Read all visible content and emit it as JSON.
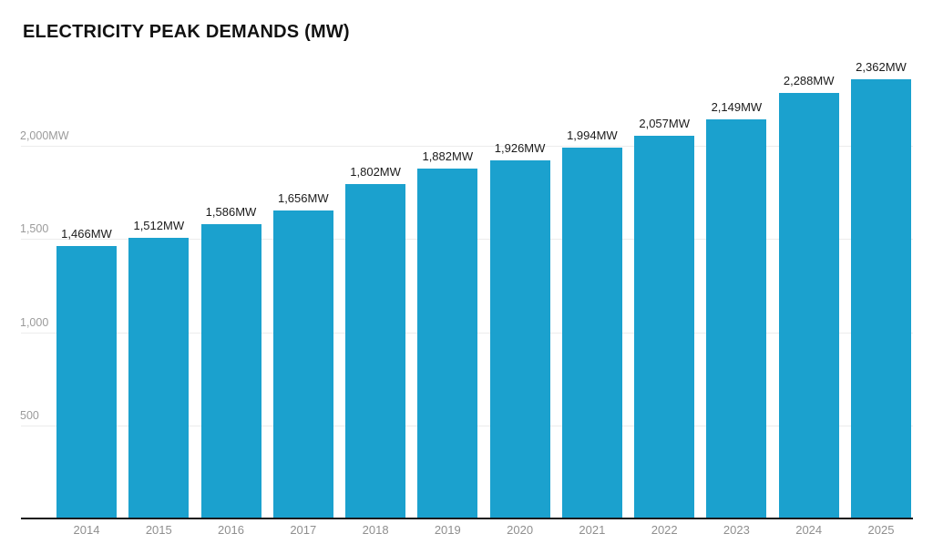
{
  "header": {
    "title": "ELECTRICITY PEAK DEMANDS (MW)"
  },
  "chart_data": {
    "type": "bar",
    "title": "ELECTRICITY PEAK DEMANDS (MW)",
    "xlabel": "",
    "ylabel": "",
    "categories": [
      "2014",
      "2015",
      "2016",
      "2017",
      "2018",
      "2019",
      "2020",
      "2021",
      "2022",
      "2023",
      "2024",
      "2025"
    ],
    "values": [
      1466,
      1512,
      1586,
      1656,
      1802,
      1882,
      1926,
      1994,
      2057,
      2149,
      2288,
      2362
    ],
    "value_labels": [
      "1,466MW",
      "1,512MW",
      "1,586MW",
      "1,656MW",
      "1,802MW",
      "1,882MW",
      "1,926MW",
      "1,994MW",
      "2,057MW",
      "2,149MW",
      "2,288MW",
      "2,362MW"
    ],
    "y_ticks": [
      {
        "value": 500,
        "label": "500"
      },
      {
        "value": 1000,
        "label": "1,000"
      },
      {
        "value": 1500,
        "label": "1,500"
      },
      {
        "value": 2000,
        "label": "2,000MW"
      }
    ],
    "ylim": [
      0,
      2500
    ],
    "grid": "horizontal",
    "legend": "none",
    "colors": {
      "bar": "#1BA1CE",
      "value_label": "#1b1b1b",
      "tick_label": "#8f8f8f",
      "y_tick_label": "#9b9b9b",
      "gridline": "#ececec",
      "axis_line": "#191919",
      "background": "#ffffff",
      "title": "#111111"
    }
  }
}
